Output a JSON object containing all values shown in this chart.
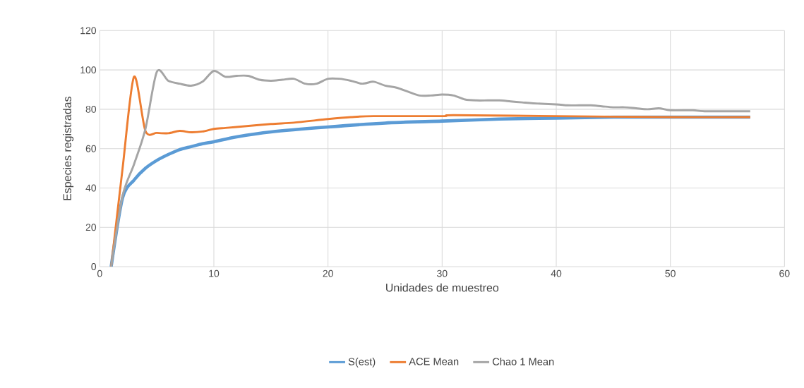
{
  "chart_data": {
    "type": "line",
    "xlabel": "Unidades de muestreo",
    "ylabel": "Especies registradas",
    "xlim": [
      0,
      60
    ],
    "xticks": [
      0,
      10,
      20,
      30,
      40,
      50,
      60
    ],
    "ylim": [
      0,
      120
    ],
    "yticks": [
      0,
      20,
      40,
      60,
      80,
      100,
      120
    ],
    "grid": true,
    "legend": "bottom",
    "marker": "none",
    "line_style": "solid",
    "series": [
      {
        "name": "S(est)",
        "color": "#5b9bd5",
        "x": [
          1,
          2,
          3,
          4,
          5,
          6,
          7,
          8,
          9,
          10,
          12,
          15,
          20,
          25,
          30,
          35,
          40,
          45,
          50,
          57
        ],
        "values": [
          0,
          35,
          44,
          50,
          54,
          57,
          59.5,
          61,
          62.5,
          63.5,
          66,
          68.5,
          71,
          73,
          74,
          75,
          75.5,
          76,
          76,
          76
        ]
      },
      {
        "name": "ACE Mean",
        "color": "#ed7d31",
        "x": [
          1,
          2,
          3,
          4,
          5,
          6,
          7,
          8,
          9,
          10,
          11,
          12,
          15,
          17,
          20,
          22,
          24,
          30,
          31,
          40,
          50,
          57
        ],
        "values": [
          0,
          50,
          96.5,
          69,
          68,
          67.8,
          69,
          68.3,
          68.7,
          70,
          70.5,
          71,
          72.5,
          73.2,
          75,
          76,
          76.5,
          76.5,
          77,
          76.5,
          76,
          76
        ]
      },
      {
        "name": "Chao 1 Mean",
        "color": "#a5a5a5",
        "x": [
          1,
          2,
          3,
          4,
          5,
          6,
          7,
          8,
          9,
          10,
          11,
          12,
          13,
          14,
          15,
          16,
          17,
          18,
          19,
          20,
          21,
          22,
          23,
          24,
          25,
          26,
          27,
          28,
          29,
          30,
          31,
          32,
          33,
          34,
          35,
          36,
          37,
          38,
          40,
          41,
          42,
          43,
          44,
          45,
          46,
          47,
          48,
          49,
          50,
          52,
          53,
          57
        ],
        "values": [
          0,
          36,
          52,
          70,
          99,
          94.5,
          93,
          92,
          94,
          99.5,
          96.5,
          97,
          97,
          95,
          94.5,
          95,
          95.5,
          93,
          93,
          95.5,
          95.5,
          94.5,
          93,
          94,
          92,
          91,
          89,
          87,
          87,
          87.5,
          87,
          85,
          84.5,
          84.5,
          84.5,
          84,
          83.5,
          83,
          82.5,
          82,
          82,
          82,
          81.5,
          81,
          81,
          80.5,
          80,
          80.5,
          79.5,
          79.5,
          79,
          79
        ]
      }
    ]
  }
}
